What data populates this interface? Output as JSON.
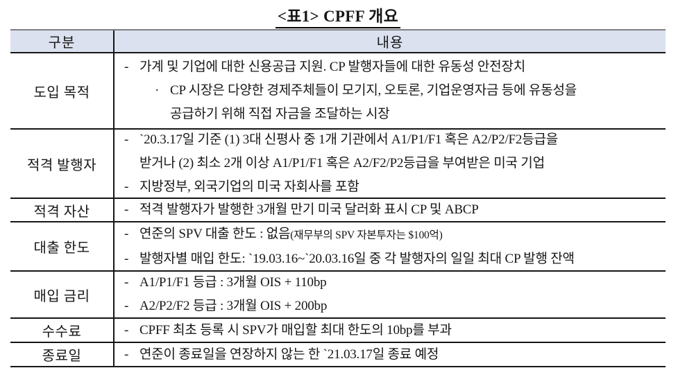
{
  "title": "<표1> CPFF 개요",
  "colors": {
    "header_bg": "#dbe1ef",
    "top_border": "#7f7f7f",
    "grid_border": "#151515"
  },
  "table": {
    "headers": {
      "category": "구분",
      "content": "내용"
    },
    "rows": [
      {
        "label": "도입 목적",
        "lines": [
          {
            "marker": "-",
            "text": "가계 및 기업에 대한 신용공급 지원. CP 발행자들에 대한 유동성 안전장치"
          },
          {
            "marker": "·",
            "text": "CP 시장은 다양한 경제주체들이 모기지, 오토론, 기업운영자금 등에 유동성을"
          },
          {
            "marker": "",
            "text": "공급하기 위해 직접 자금을 조달하는 시장"
          }
        ]
      },
      {
        "label": "적격 발행자",
        "lines": [
          {
            "marker": "-",
            "text": "`20.3.17일 기준 (1) 3대 신평사 중 1개 기관에서 A1/P1/F1 혹은 A2/P2/F2등급을"
          },
          {
            "marker": "",
            "text": "받거나 (2) 최소 2개 이상 A1/P1/F1 혹은 A2/F2/P2등급을 부여받은 미국 기업"
          },
          {
            "marker": "-",
            "text": "지방정부, 외국기업의 미국 자회사를 포함"
          }
        ]
      },
      {
        "label": "적격 자산",
        "lines": [
          {
            "marker": "-",
            "text": "적격 발행자가 발행한 3개월 만기 미국 달러화 표시 CP 및 ABCP"
          }
        ]
      },
      {
        "label": "대출 한도",
        "lines": [
          {
            "marker": "-",
            "text": "연준의 SPV 대출 한도 : 없음",
            "small": "(재무부의 SPV 자본투자는 $100억)"
          },
          {
            "marker": "-",
            "text": "발행자별 매입 한도: `19.03.16~`20.03.16일 중 각 발행자의 일일 최대 CP 발행 잔액"
          }
        ]
      },
      {
        "label": "매입 금리",
        "lines": [
          {
            "marker": "-",
            "text": "A1/P1/F1 등급 : 3개월 OIS + 110bp"
          },
          {
            "marker": "-",
            "text": "A2/P2/F2 등급 : 3개월 OIS + 200bp"
          }
        ]
      },
      {
        "label": "수수료",
        "lines": [
          {
            "marker": "-",
            "text": "CPFF 최초 등록 시 SPV가 매입할 최대 한도의 10bp를 부과"
          }
        ]
      },
      {
        "label": "종료일",
        "lines": [
          {
            "marker": "-",
            "text": "연준이 종료일을 연장하지 않는 한 `21.03.17일 종료 예정"
          }
        ]
      }
    ]
  }
}
